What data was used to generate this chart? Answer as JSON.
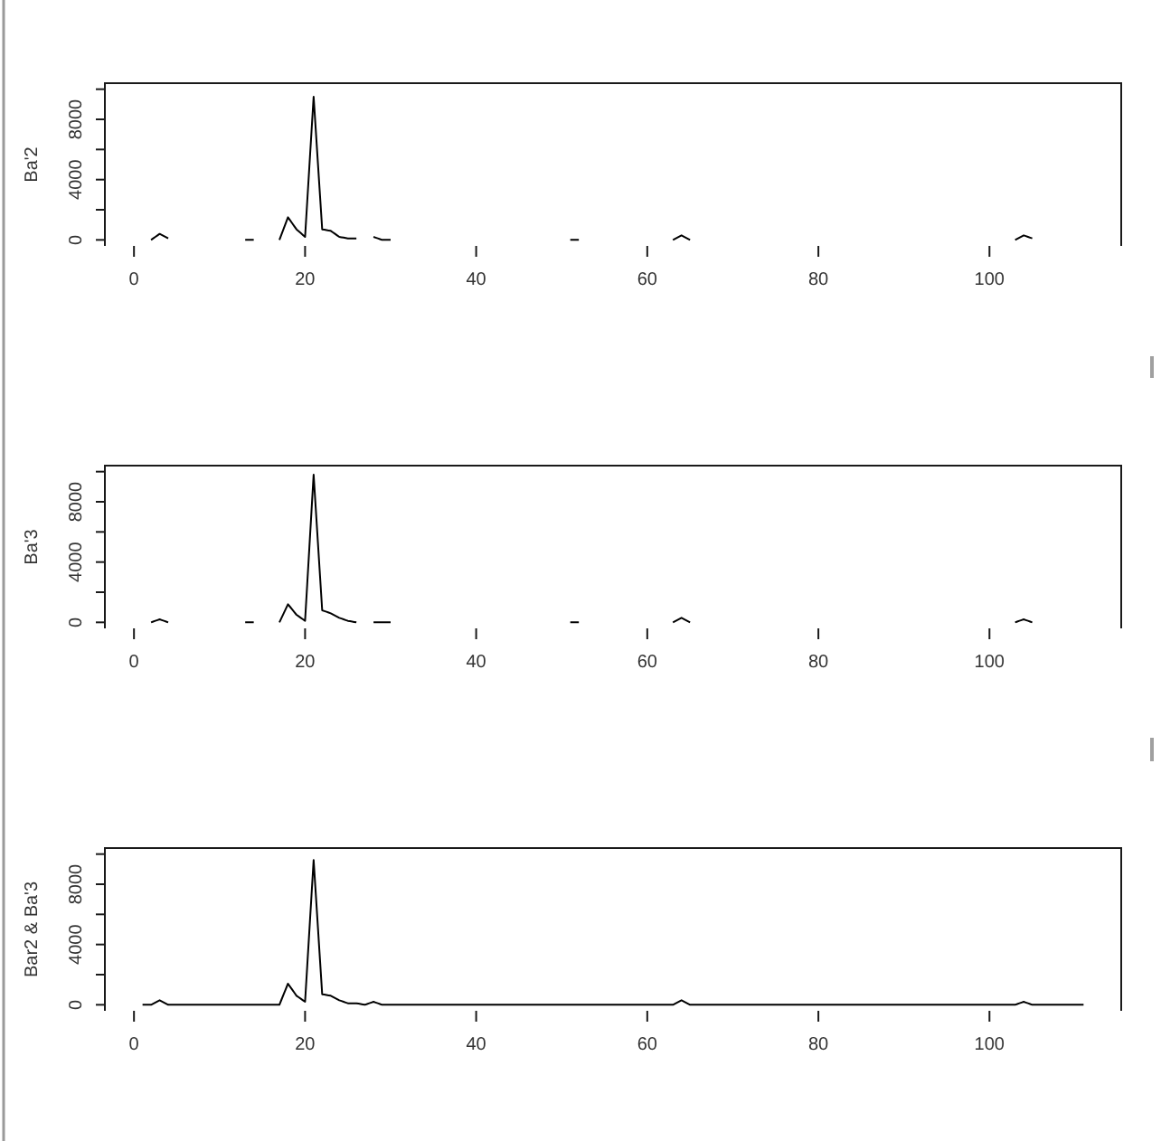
{
  "chart_data": [
    {
      "type": "line",
      "ylabel": "Ba'2",
      "x": [
        2,
        3,
        4,
        5,
        6,
        7,
        8,
        9,
        10,
        11,
        12,
        13,
        14,
        15,
        16,
        17,
        18,
        19,
        20,
        21,
        22,
        23,
        24,
        25,
        26,
        27,
        28,
        29,
        30,
        31,
        32,
        33,
        34,
        35,
        36,
        37,
        38,
        39,
        40,
        41,
        42,
        43,
        44,
        45,
        46,
        47,
        48,
        49,
        50,
        51,
        52,
        53,
        54,
        55,
        56,
        57,
        58,
        59,
        60,
        61,
        62,
        63,
        64,
        65,
        66,
        67,
        68,
        69,
        70,
        71,
        72,
        73,
        74,
        75,
        76,
        77,
        78,
        79,
        80,
        81,
        82,
        83,
        84,
        85,
        86,
        87,
        88,
        89,
        90,
        91,
        92,
        93,
        94,
        95,
        96,
        97,
        98,
        99,
        100,
        101,
        102,
        103,
        104,
        105
      ],
      "series": [
        {
          "color": "#000000",
          "values": [
            0,
            400,
            100,
            null,
            null,
            null,
            null,
            null,
            null,
            null,
            null,
            0,
            0,
            null,
            null,
            0,
            1500,
            700,
            200,
            9500,
            700,
            600,
            200,
            100,
            100,
            null,
            200,
            0,
            0,
            null,
            null,
            null,
            null,
            null,
            null,
            null,
            null,
            null,
            null,
            null,
            null,
            null,
            null,
            null,
            null,
            null,
            null,
            null,
            null,
            0,
            0,
            null,
            null,
            null,
            null,
            null,
            null,
            null,
            null,
            null,
            null,
            0,
            300,
            0,
            null,
            null,
            null,
            null,
            null,
            null,
            null,
            null,
            null,
            null,
            null,
            null,
            null,
            null,
            null,
            null,
            null,
            null,
            null,
            null,
            null,
            null,
            null,
            null,
            null,
            null,
            null,
            null,
            null,
            null,
            null,
            null,
            null,
            null,
            null,
            null,
            null,
            0,
            300,
            100
          ]
        }
      ],
      "xlim": [
        -3.4,
        115.4
      ],
      "ylim": [
        -400,
        10400
      ],
      "xticks": [
        0,
        20,
        40,
        60,
        80,
        100
      ],
      "yticks": [
        0,
        {
          "value": 2000,
          "label": null
        },
        4000,
        {
          "value": 6000,
          "label": null
        },
        8000,
        {
          "value": 10000,
          "label": null
        }
      ]
    },
    {
      "type": "line",
      "ylabel": "Ba'3",
      "x": [
        2,
        3,
        4,
        5,
        6,
        7,
        8,
        9,
        10,
        11,
        12,
        13,
        14,
        15,
        16,
        17,
        18,
        19,
        20,
        21,
        22,
        23,
        24,
        25,
        26,
        27,
        28,
        29,
        30,
        31,
        32,
        33,
        34,
        35,
        36,
        37,
        38,
        39,
        40,
        41,
        42,
        43,
        44,
        45,
        46,
        47,
        48,
        49,
        50,
        51,
        52,
        53,
        54,
        55,
        56,
        57,
        58,
        59,
        60,
        61,
        62,
        63,
        64,
        65,
        66,
        67,
        68,
        69,
        70,
        71,
        72,
        73,
        74,
        75,
        76,
        77,
        78,
        79,
        80,
        81,
        82,
        83,
        84,
        85,
        86,
        87,
        88,
        89,
        90,
        91,
        92,
        93,
        94,
        95,
        96,
        97,
        98,
        99,
        100,
        101,
        102,
        103,
        104,
        105
      ],
      "series": [
        {
          "color": "#000000",
          "values": [
            0,
            200,
            0,
            null,
            null,
            null,
            null,
            null,
            null,
            null,
            null,
            0,
            0,
            null,
            null,
            0,
            1200,
            500,
            100,
            9800,
            800,
            600,
            300,
            100,
            0,
            null,
            0,
            0,
            0,
            null,
            null,
            null,
            null,
            null,
            null,
            null,
            null,
            null,
            null,
            null,
            null,
            null,
            null,
            null,
            null,
            null,
            null,
            null,
            null,
            0,
            0,
            null,
            null,
            null,
            null,
            null,
            null,
            null,
            null,
            null,
            null,
            0,
            300,
            0,
            null,
            null,
            null,
            null,
            null,
            null,
            null,
            null,
            null,
            null,
            null,
            null,
            null,
            null,
            null,
            null,
            null,
            null,
            null,
            null,
            null,
            null,
            null,
            null,
            null,
            null,
            null,
            null,
            null,
            null,
            null,
            null,
            null,
            null,
            null,
            null,
            null,
            0,
            200,
            0
          ]
        }
      ],
      "xlim": [
        -3.4,
        115.4
      ],
      "ylim": [
        -400,
        10400
      ],
      "xticks": [
        0,
        20,
        40,
        60,
        80,
        100
      ],
      "yticks": [
        0,
        {
          "value": 2000,
          "label": null
        },
        4000,
        {
          "value": 6000,
          "label": null
        },
        8000,
        {
          "value": 10000,
          "label": null
        }
      ]
    },
    {
      "type": "line",
      "ylabel": "Bar2 & Ba'3",
      "x": [
        1,
        2,
        3,
        4,
        5,
        6,
        7,
        8,
        9,
        10,
        11,
        12,
        13,
        14,
        15,
        16,
        17,
        18,
        19,
        20,
        21,
        22,
        23,
        24,
        25,
        26,
        27,
        28,
        29,
        30,
        31,
        32,
        33,
        34,
        35,
        36,
        37,
        38,
        39,
        40,
        41,
        42,
        43,
        44,
        45,
        46,
        47,
        48,
        49,
        50,
        51,
        52,
        53,
        54,
        55,
        56,
        57,
        58,
        59,
        60,
        61,
        62,
        63,
        64,
        65,
        66,
        67,
        68,
        69,
        70,
        71,
        72,
        73,
        74,
        75,
        76,
        77,
        78,
        79,
        80,
        81,
        82,
        83,
        84,
        85,
        86,
        87,
        88,
        89,
        90,
        91,
        92,
        93,
        94,
        95,
        96,
        97,
        98,
        99,
        100,
        101,
        102,
        103,
        104,
        105,
        106,
        107,
        108,
        109,
        110,
        111
      ],
      "series": [
        {
          "color": "#000000",
          "values": [
            0,
            0,
            300,
            0,
            0,
            0,
            0,
            0,
            0,
            0,
            0,
            0,
            0,
            0,
            0,
            0,
            0,
            1400,
            600,
            200,
            9600,
            700,
            600,
            300,
            100,
            100,
            0,
            200,
            0,
            0,
            0,
            0,
            0,
            0,
            0,
            0,
            0,
            0,
            0,
            0,
            0,
            0,
            0,
            0,
            0,
            0,
            0,
            0,
            0,
            0,
            0,
            0,
            0,
            0,
            0,
            0,
            0,
            0,
            0,
            0,
            0,
            0,
            0,
            300,
            0,
            0,
            0,
            0,
            0,
            0,
            0,
            0,
            0,
            0,
            0,
            0,
            0,
            0,
            0,
            0,
            0,
            0,
            0,
            0,
            0,
            0,
            0,
            0,
            0,
            0,
            0,
            0,
            0,
            0,
            0,
            0,
            0,
            0,
            0,
            0,
            0,
            0,
            0,
            200,
            0,
            0,
            0,
            0,
            0,
            0,
            0
          ]
        }
      ],
      "xlim": [
        -3.4,
        115.4
      ],
      "ylim": [
        -400,
        10400
      ],
      "xticks": [
        0,
        20,
        40,
        60,
        80,
        100
      ],
      "yticks": [
        0,
        {
          "value": 2000,
          "label": null
        },
        4000,
        {
          "value": 6000,
          "label": null
        },
        8000,
        {
          "value": 10000,
          "label": null
        }
      ]
    }
  ]
}
